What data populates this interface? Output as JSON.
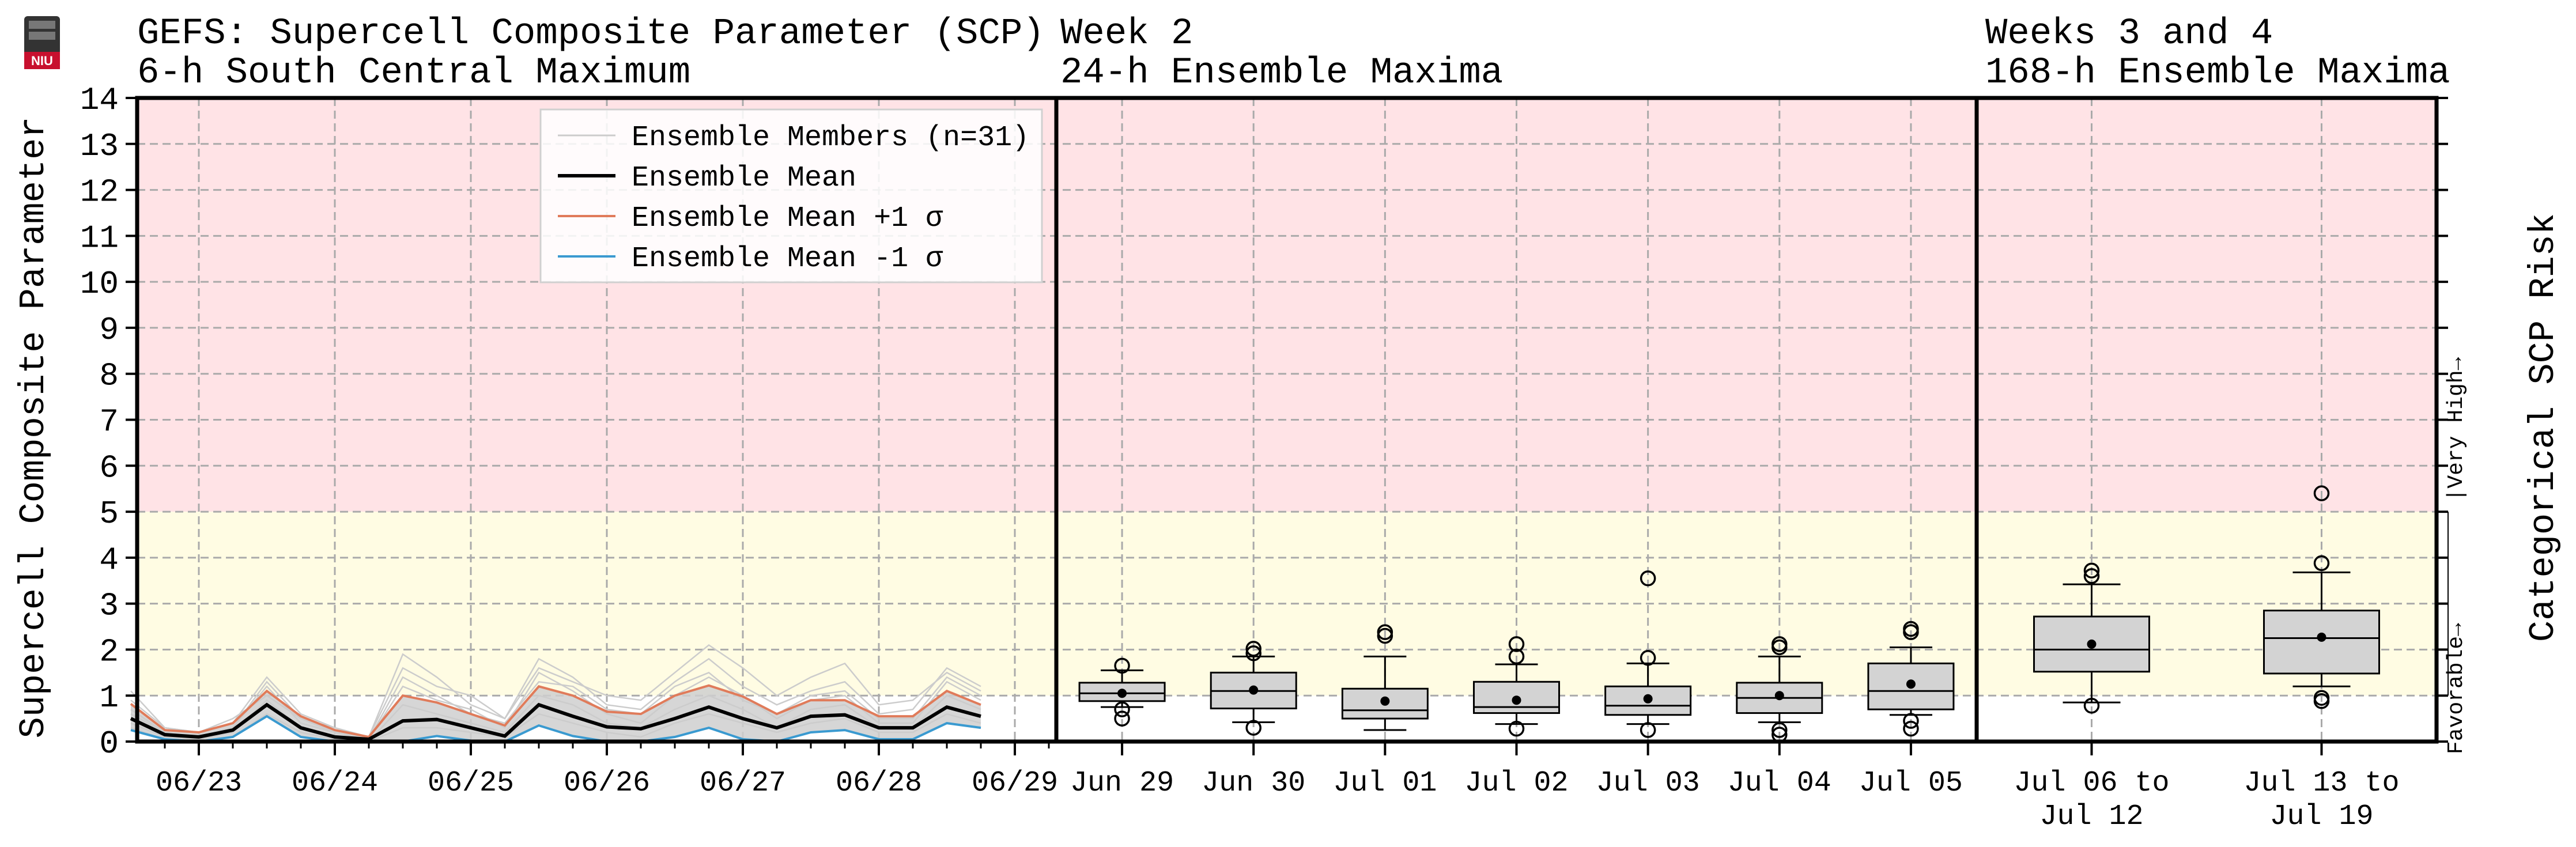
{
  "titles": {
    "left_line1": "GEFS: Supercell Composite Parameter (SCP)",
    "left_line2": "6-h South Central Maximum",
    "mid_line1": "Week 2",
    "mid_line2": "24-h Ensemble Maxima",
    "right_line1": "Weeks 3 and 4",
    "right_line2": "168-h Ensemble Maxima"
  },
  "logo_text": "NIU",
  "ylabel": "Supercell Composite Parameter",
  "right_label": "Categorical SCP Risk",
  "category_labels": {
    "favorable": "Favorable→",
    "very_high": "|Very High→"
  },
  "colors": {
    "very_high_band": "#ffe3e6",
    "favorable_band": "#fffce3",
    "ensemble_member": "#cccccc",
    "ensemble_mean": "#000000",
    "plus_sigma": "#e07b5a",
    "minus_sigma": "#3a9ad0",
    "sigma_fill": "#cfcfcf",
    "box_fill": "#d3d3d3"
  },
  "chart_data": [
    {
      "type": "line",
      "title": "6-h South Central Maximum",
      "ylabel": "Supercell Composite Parameter",
      "ylim": [
        0,
        14
      ],
      "yticks": [
        0,
        1,
        2,
        3,
        4,
        5,
        6,
        7,
        8,
        9,
        10,
        11,
        12,
        13,
        14
      ],
      "xticks": [
        "06/23",
        "06/24",
        "06/25",
        "06/26",
        "06/27",
        "06/28",
        "06/29"
      ],
      "grid": true,
      "legend_position": "top-right",
      "legend": [
        "Ensemble Members (n=31)",
        "Ensemble Mean",
        "Ensemble Mean +1 σ",
        "Ensemble Mean -1 σ"
      ],
      "x_start_offset_days": -0.5,
      "step_hours": 6,
      "series": [
        {
          "name": "Ensemble Mean",
          "values": [
            0.5,
            0.15,
            0.1,
            0.25,
            0.8,
            0.3,
            0.1,
            0.05,
            0.45,
            0.48,
            0.3,
            0.12,
            0.8,
            0.55,
            0.32,
            0.28,
            0.5,
            0.75,
            0.5,
            0.3,
            0.55,
            0.58,
            0.3,
            0.3,
            0.75,
            0.55
          ]
        },
        {
          "name": "Ensemble Mean +1 σ",
          "values": [
            0.82,
            0.25,
            0.2,
            0.4,
            1.1,
            0.55,
            0.25,
            0.1,
            1.0,
            0.85,
            0.6,
            0.35,
            1.2,
            1.0,
            0.65,
            0.6,
            1.0,
            1.22,
            0.98,
            0.6,
            0.9,
            0.9,
            0.55,
            0.55,
            1.1,
            0.8
          ]
        },
        {
          "name": "Ensemble Mean -1 σ",
          "values": [
            0.25,
            0.05,
            0.0,
            0.1,
            0.55,
            0.1,
            0.0,
            0.0,
            0.0,
            0.12,
            0.02,
            0.0,
            0.35,
            0.12,
            0.0,
            0.0,
            0.1,
            0.3,
            0.05,
            0.0,
            0.2,
            0.25,
            0.05,
            0.05,
            0.4,
            0.3
          ]
        }
      ],
      "member_traces": [
        [
          1.1,
          0.3,
          0.2,
          0.4,
          1.4,
          0.6,
          0.3,
          0.1,
          1.6,
          1.2,
          1.0,
          0.5,
          1.8,
          1.4,
          0.8,
          0.7,
          1.3,
          1.8,
          1.2,
          0.8,
          1.1,
          1.3,
          0.6,
          0.7,
          1.6,
          1.2
        ],
        [
          0.7,
          0.2,
          0.1,
          0.3,
          1.2,
          0.4,
          0.2,
          0.05,
          1.2,
          0.9,
          0.7,
          0.3,
          1.5,
          1.1,
          0.6,
          0.4,
          1.0,
          1.4,
          1.0,
          0.5,
          0.9,
          1.0,
          0.4,
          0.4,
          1.3,
          0.9
        ],
        [
          0.4,
          0.1,
          0.05,
          0.2,
          0.9,
          0.3,
          0.1,
          0.0,
          0.8,
          0.6,
          0.4,
          0.2,
          1.0,
          0.8,
          0.4,
          0.3,
          0.7,
          1.0,
          0.7,
          0.3,
          0.7,
          0.8,
          0.3,
          0.3,
          1.0,
          0.7
        ],
        [
          0.9,
          0.3,
          0.2,
          0.5,
          1.0,
          0.5,
          0.3,
          0.1,
          1.9,
          1.4,
          0.8,
          0.5,
          1.6,
          1.3,
          1.0,
          0.9,
          1.5,
          2.1,
          1.6,
          1.0,
          1.4,
          1.7,
          0.8,
          0.9,
          1.5,
          1.1
        ],
        [
          0.3,
          0.05,
          0.0,
          0.1,
          0.6,
          0.2,
          0.05,
          0.0,
          0.3,
          0.3,
          0.2,
          0.1,
          0.6,
          0.4,
          0.2,
          0.1,
          0.4,
          0.6,
          0.4,
          0.2,
          0.4,
          0.5,
          0.2,
          0.2,
          0.6,
          0.4
        ],
        [
          0.6,
          0.2,
          0.1,
          0.3,
          1.3,
          0.5,
          0.2,
          0.05,
          1.4,
          1.0,
          0.6,
          0.4,
          1.3,
          1.2,
          0.7,
          0.6,
          1.2,
          1.5,
          0.9,
          0.6,
          1.0,
          1.1,
          0.5,
          0.5,
          1.4,
          1.0
        ]
      ]
    },
    {
      "type": "box",
      "title": "24-h Ensemble Maxima",
      "ylim": [
        0,
        14
      ],
      "categories": [
        "Jun 29",
        "Jun 30",
        "Jul 01",
        "Jul 02",
        "Jul 03",
        "Jul 04",
        "Jul 05"
      ],
      "boxes": [
        {
          "label": "Jun 29",
          "whisker_low": 0.75,
          "q1": 0.88,
          "median": 1.05,
          "q3": 1.28,
          "whisker_high": 1.55,
          "mean": 1.05,
          "outliers": [
            0.5,
            0.7,
            1.65
          ]
        },
        {
          "label": "Jun 30",
          "whisker_low": 0.42,
          "q1": 0.72,
          "median": 1.1,
          "q3": 1.5,
          "whisker_high": 1.85,
          "mean": 1.12,
          "outliers": [
            0.3,
            1.92,
            2.02
          ]
        },
        {
          "label": "Jul 01",
          "whisker_low": 0.25,
          "q1": 0.5,
          "median": 0.68,
          "q3": 1.15,
          "whisker_high": 1.85,
          "mean": 0.88,
          "outliers": [
            2.3,
            2.38
          ]
        },
        {
          "label": "Jul 02",
          "whisker_low": 0.38,
          "q1": 0.62,
          "median": 0.75,
          "q3": 1.3,
          "whisker_high": 1.68,
          "mean": 0.9,
          "outliers": [
            0.28,
            1.85,
            2.12
          ]
        },
        {
          "label": "Jul 03",
          "whisker_low": 0.38,
          "q1": 0.58,
          "median": 0.78,
          "q3": 1.2,
          "whisker_high": 1.7,
          "mean": 0.93,
          "outliers": [
            0.25,
            1.82,
            3.55
          ]
        },
        {
          "label": "Jul 04",
          "whisker_low": 0.42,
          "q1": 0.62,
          "median": 0.95,
          "q3": 1.28,
          "whisker_high": 1.85,
          "mean": 1.0,
          "outliers": [
            0.15,
            0.25,
            2.05,
            2.12
          ]
        },
        {
          "label": "Jul 05",
          "whisker_low": 0.58,
          "q1": 0.7,
          "median": 1.1,
          "q3": 1.7,
          "whisker_high": 2.05,
          "mean": 1.25,
          "outliers": [
            0.28,
            0.45,
            2.38,
            2.45
          ]
        }
      ]
    },
    {
      "type": "box",
      "title": "168-h Ensemble Maxima",
      "ylim": [
        0,
        14
      ],
      "categories": [
        "Jul 06 to|Jul 12",
        "Jul 13 to|Jul 19"
      ],
      "boxes": [
        {
          "label": "Jul 06 to|Jul 12",
          "whisker_low": 0.85,
          "q1": 1.52,
          "median": 2.0,
          "q3": 2.72,
          "whisker_high": 3.42,
          "mean": 2.12,
          "outliers": [
            0.78,
            3.6,
            3.72
          ]
        },
        {
          "label": "Jul 13 to|Jul 19",
          "whisker_low": 1.2,
          "q1": 1.48,
          "median": 2.25,
          "q3": 2.85,
          "whisker_high": 3.68,
          "mean": 2.27,
          "outliers": [
            0.88,
            0.95,
            3.88,
            5.4
          ]
        }
      ]
    }
  ]
}
